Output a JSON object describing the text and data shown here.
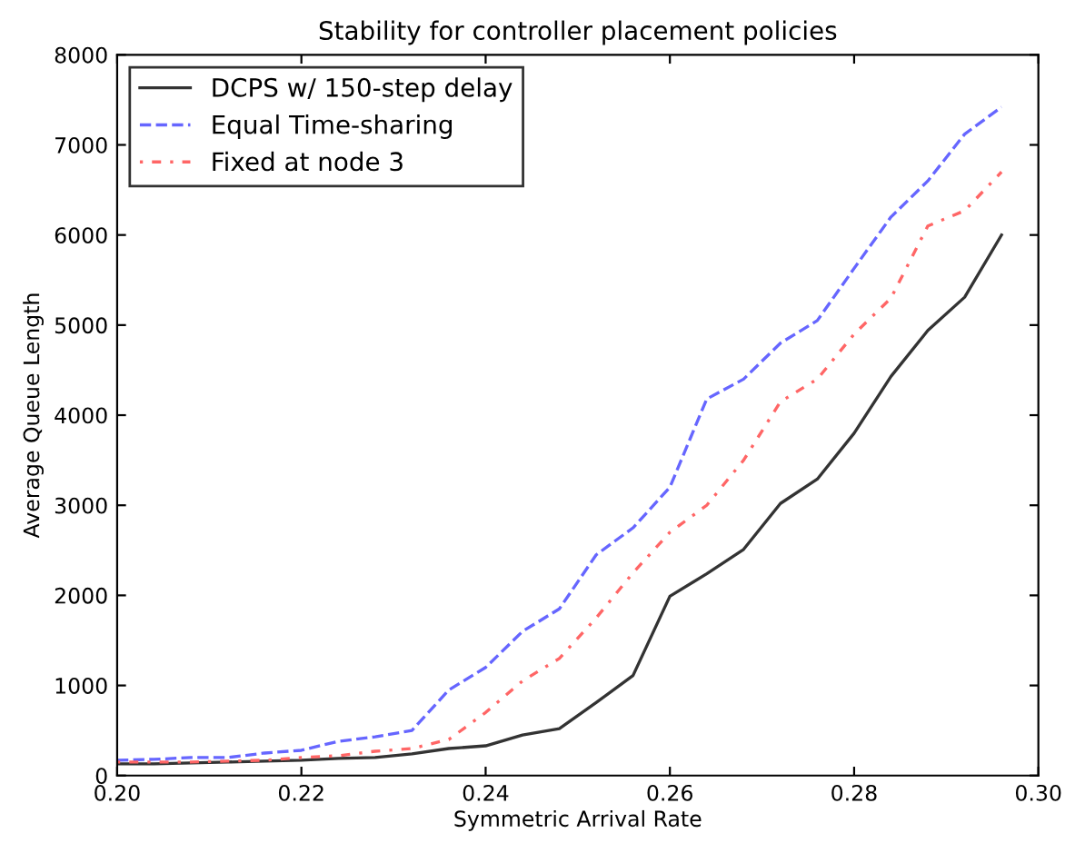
{
  "chart_data": {
    "type": "line",
    "title": "Stability for controller placement policies",
    "xlabel": "Symmetric Arrival Rate",
    "ylabel": "Average Queue Length",
    "x": [
      0.2,
      0.204,
      0.208,
      0.212,
      0.216,
      0.22,
      0.224,
      0.228,
      0.232,
      0.236,
      0.24,
      0.244,
      0.248,
      0.252,
      0.256,
      0.26,
      0.264,
      0.268,
      0.272,
      0.276,
      0.28,
      0.284,
      0.288,
      0.292,
      0.296
    ],
    "series": [
      {
        "name": "DCPS w/ 150-step delay",
        "color": "#333333",
        "line_style": "solid",
        "values": [
          130,
          130,
          140,
          150,
          160,
          170,
          190,
          200,
          240,
          300,
          330,
          450,
          520,
          810,
          1110,
          1990,
          2240,
          2510,
          3020,
          3290,
          3800,
          4430,
          4940,
          5310,
          6000
        ]
      },
      {
        "name": "Equal Time-sharing",
        "color": "#6666ff",
        "line_style": "dashed",
        "values": [
          170,
          180,
          200,
          200,
          250,
          280,
          380,
          430,
          500,
          950,
          1200,
          1600,
          1850,
          2450,
          2750,
          3200,
          4180,
          4400,
          4800,
          5050,
          5630,
          6200,
          6600,
          7120,
          7420
        ]
      },
      {
        "name": "Fixed at node 3",
        "color": "#ff6666",
        "line_style": "dotted",
        "values": [
          150,
          150,
          150,
          160,
          170,
          200,
          220,
          270,
          300,
          400,
          700,
          1050,
          1300,
          1750,
          2250,
          2700,
          3000,
          3500,
          4150,
          4400,
          4900,
          5300,
          6100,
          6270,
          6700
        ]
      }
    ],
    "xlim": [
      0.2,
      0.3
    ],
    "xticks": [
      {
        "value": 0.2,
        "label": "0.20"
      },
      {
        "value": 0.22,
        "label": "0.22"
      },
      {
        "value": 0.24,
        "label": "0.24"
      },
      {
        "value": 0.26,
        "label": "0.26"
      },
      {
        "value": 0.28,
        "label": "0.28"
      },
      {
        "value": 0.3,
        "label": "0.30"
      }
    ],
    "ylim": [
      0,
      8000
    ],
    "yticks": [
      0,
      1000,
      2000,
      3000,
      4000,
      5000,
      6000,
      7000,
      8000
    ],
    "legend": "top left",
    "grid": false
  }
}
